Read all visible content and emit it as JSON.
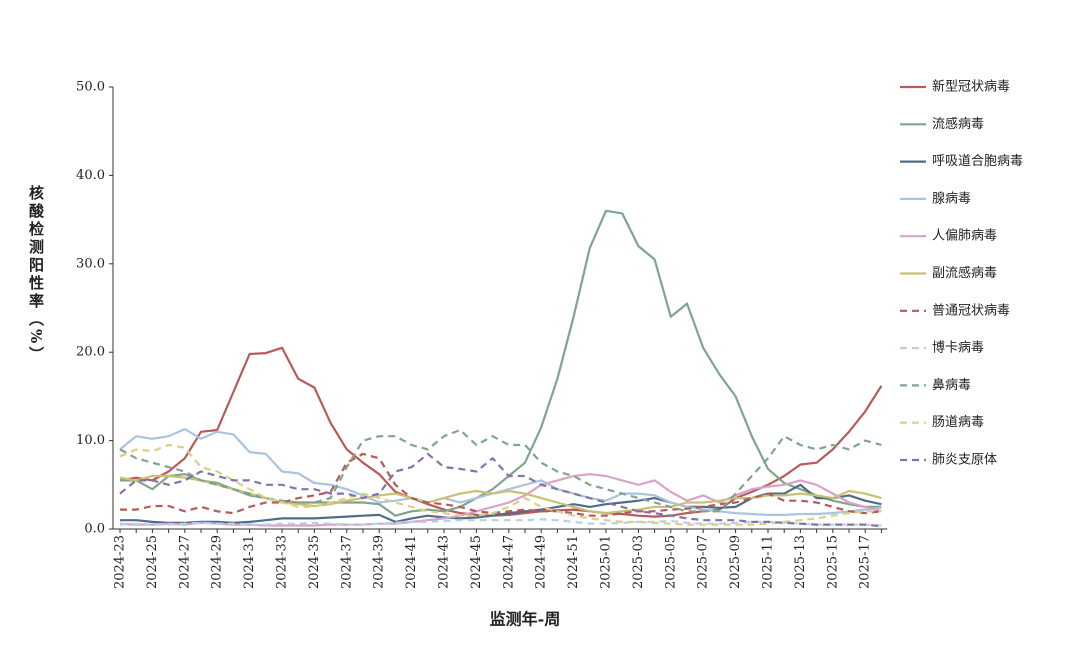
{
  "chart_data": {
    "type": "line",
    "y_label": "核酸检测阳性率（%）",
    "x_label": "监测年-周",
    "categories": [
      "2024-23",
      null,
      "2024-25",
      null,
      "2024-27",
      null,
      "2024-29",
      null,
      "2024-31",
      null,
      "2024-33",
      null,
      "2024-35",
      null,
      "2024-37",
      null,
      "2024-39",
      null,
      "2024-41",
      null,
      "2024-43",
      null,
      "2024-45",
      null,
      "2024-47",
      null,
      "2024-49",
      null,
      "2024-51",
      null,
      "2025-01",
      null,
      "2025-03",
      null,
      "2025-05",
      null,
      "2025-07",
      null,
      "2025-09",
      null,
      "2025-11",
      null,
      "2025-13",
      null,
      "2025-15",
      null,
      "2025-17",
      null
    ],
    "ylim": [
      0,
      50
    ],
    "yticks": [
      {
        "value": 0,
        "label": "0.0"
      },
      {
        "value": 10,
        "label": "10.0"
      },
      {
        "value": 20,
        "label": "20.0"
      },
      {
        "value": 30,
        "label": "30.0"
      },
      {
        "value": 40,
        "label": "40.0"
      },
      {
        "value": 50,
        "label": "50.0"
      }
    ],
    "series": [
      {
        "name": "新型冠状病毒",
        "color": "#b85a57",
        "dashed": false,
        "values": [
          5.5,
          5.8,
          5.5,
          6.5,
          8,
          11,
          11.2,
          15.5,
          19.8,
          19.9,
          20.5,
          17,
          16,
          12,
          9,
          7.5,
          6.2,
          4.2,
          3.5,
          2.8,
          2.2,
          1.8,
          1.6,
          1.5,
          1.6,
          1.8,
          2.0,
          2.1,
          2.2,
          2.0,
          1.8,
          1.7,
          1.5,
          1.4,
          1.5,
          1.8,
          2.0,
          2.2,
          3.5,
          4.2,
          5.0,
          6.0,
          7.3,
          7.5,
          9.0,
          11.0,
          13.3,
          16.2
        ]
      },
      {
        "name": "流感病毒",
        "color": "#7fa58c",
        "dashed": false,
        "values": [
          5.5,
          5.5,
          4.5,
          6,
          6.2,
          5.5,
          5.2,
          4.5,
          3.8,
          3.5,
          3.0,
          3.0,
          3.0,
          3.0,
          3.0,
          3.0,
          2.8,
          1.5,
          2.0,
          2.2,
          2.0,
          2.5,
          3.5,
          4.5,
          6.0,
          7.5,
          11.5,
          17,
          24,
          31.8,
          36,
          35.7,
          32,
          30.5,
          24,
          25.5,
          20.5,
          17.5,
          15,
          10.5,
          6.8,
          5.2,
          4.5,
          3.8,
          3.2,
          2.8,
          2.5,
          2.5
        ]
      },
      {
        "name": "呼吸道合胞病毒",
        "color": "#4f6d8a",
        "dashed": false,
        "values": [
          1.0,
          1.0,
          0.8,
          0.7,
          0.7,
          0.8,
          0.8,
          0.7,
          0.8,
          1.0,
          1.2,
          1.2,
          1.2,
          1.3,
          1.4,
          1.5,
          1.6,
          0.8,
          1.2,
          1.5,
          1.3,
          1.2,
          1.3,
          1.5,
          1.8,
          2.0,
          2.2,
          2.5,
          2.8,
          2.5,
          2.8,
          3.0,
          3.2,
          3.5,
          3.0,
          2.5,
          2.5,
          2.4,
          2.5,
          3.5,
          4.0,
          4.0,
          5.0,
          3.5,
          3.5,
          3.8,
          3.2,
          2.8
        ]
      },
      {
        "name": "腺病毒",
        "color": "#a9c4e0",
        "dashed": false,
        "values": [
          9,
          10.5,
          10.2,
          10.5,
          11.3,
          10.2,
          11,
          10.7,
          8.7,
          8.5,
          6.5,
          6.3,
          5.2,
          5.0,
          4.5,
          3.8,
          3.0,
          3.2,
          3.5,
          3.0,
          3.5,
          3.0,
          3.5,
          4.0,
          4.5,
          5.0,
          5.5,
          4.5,
          4.0,
          3.5,
          3.2,
          4.0,
          4.0,
          3.8,
          3.0,
          2.5,
          2.2,
          2.0,
          1.8,
          1.7,
          1.6,
          1.6,
          1.7,
          1.7,
          1.8,
          2.0,
          2.2,
          2.4
        ]
      },
      {
        "name": "人偏肺病毒",
        "color": "#d9a3c9",
        "dashed": false,
        "values": [
          0.6,
          0.5,
          0.5,
          0.6,
          0.5,
          0.7,
          0.6,
          0.5,
          0.5,
          0.4,
          0.4,
          0.4,
          0.4,
          0.5,
          0.5,
          0.5,
          0.6,
          0.6,
          0.8,
          1.0,
          1.2,
          1.5,
          2.0,
          2.5,
          3.0,
          3.8,
          5.0,
          5.5,
          6.0,
          6.2,
          6.0,
          5.5,
          5.0,
          5.5,
          4.2,
          3.2,
          3.8,
          3.0,
          3.8,
          4.5,
          4.8,
          5.0,
          5.5,
          5.0,
          4.0,
          3.0,
          2.5,
          2.0
        ]
      },
      {
        "name": "副流感病毒",
        "color": "#c9c172",
        "dashed": false,
        "values": [
          5.8,
          5.5,
          6.0,
          6.0,
          5.8,
          5.5,
          5.0,
          4.5,
          4.0,
          3.5,
          3.0,
          2.8,
          2.6,
          2.8,
          3.2,
          3.5,
          3.8,
          4.0,
          3.5,
          3.0,
          3.5,
          4.0,
          4.3,
          4.0,
          4.3,
          4.0,
          3.5,
          3.0,
          2.5,
          2.0,
          1.8,
          2.0,
          2.2,
          2.5,
          2.5,
          3.0,
          3.0,
          3.2,
          3.5,
          3.5,
          3.8,
          3.8,
          4.0,
          3.8,
          3.5,
          4.3,
          4.0,
          3.5
        ]
      },
      {
        "name": "普通冠状病毒",
        "color": "#b85a57",
        "dashed": true,
        "values": [
          2.2,
          2.2,
          2.6,
          2.6,
          2.0,
          2.5,
          2.0,
          1.8,
          2.5,
          3.0,
          3.0,
          3.5,
          3.8,
          4.2,
          7.5,
          8.5,
          8.0,
          5.0,
          3.5,
          3.0,
          2.8,
          2.5,
          2.0,
          1.8,
          2.0,
          2.2,
          2.0,
          2.0,
          1.8,
          1.5,
          1.5,
          1.8,
          2.0,
          2.0,
          2.2,
          2.3,
          2.5,
          2.8,
          3.0,
          3.5,
          4.0,
          3.2,
          3.2,
          3.0,
          2.5,
          2.0,
          1.8,
          2.0
        ]
      },
      {
        "name": "博卡病毒",
        "color": "#b9d0e8",
        "dashed": true,
        "values": [
          0.5,
          0.6,
          0.5,
          0.5,
          0.6,
          0.7,
          0.6,
          0.6,
          0.5,
          0.5,
          0.6,
          0.6,
          0.7,
          0.6,
          0.5,
          0.5,
          0.6,
          0.7,
          0.8,
          0.8,
          0.9,
          1.0,
          1.0,
          1.0,
          1.0,
          1.0,
          1.1,
          1.0,
          0.8,
          0.6,
          0.6,
          0.7,
          0.8,
          0.8,
          0.9,
          0.7,
          0.6,
          0.6,
          0.7,
          0.8,
          0.8,
          0.7,
          0.6,
          0.5,
          0.5,
          0.5,
          0.5,
          0.4
        ]
      },
      {
        "name": "鼻病毒",
        "color": "#7fa58c",
        "dashed": true,
        "values": [
          9,
          8,
          7.5,
          7,
          6.5,
          5.5,
          5.0,
          4.5,
          4.0,
          3.5,
          3.2,
          3.0,
          3.0,
          3.5,
          7.0,
          10.0,
          10.5,
          10.5,
          9.5,
          9.0,
          10.5,
          11.2,
          9.5,
          10.5,
          9.5,
          9.5,
          7.5,
          6.5,
          6.0,
          5.0,
          4.5,
          4.0,
          3.5,
          3.0,
          2.5,
          2.0,
          2.0,
          2.0,
          4.0,
          6.0,
          8.0,
          10.5,
          9.5,
          9.0,
          9.5,
          9.0,
          10.0,
          9.5
        ]
      },
      {
        "name": "肠道病毒",
        "color": "#d9d184",
        "dashed": true,
        "values": [
          8.2,
          9.0,
          8.8,
          9.5,
          9.2,
          7.0,
          6.5,
          5.5,
          4.5,
          3.5,
          3.0,
          2.5,
          2.5,
          3.0,
          3.5,
          4.0,
          3.5,
          3.0,
          2.5,
          2.0,
          1.8,
          1.5,
          1.5,
          1.8,
          2.5,
          3.5,
          2.5,
          2.0,
          1.5,
          1.2,
          1.0,
          0.8,
          0.8,
          0.7,
          0.6,
          0.5,
          0.5,
          0.5,
          0.5,
          0.5,
          0.6,
          0.8,
          1.0,
          1.2,
          1.5,
          1.8,
          2.0,
          2.0
        ]
      },
      {
        "name": "肺炎支原体",
        "color": "#8273aa",
        "dashed": true,
        "values": [
          4.0,
          5.5,
          5.5,
          5.0,
          5.5,
          6.5,
          6.0,
          5.5,
          5.5,
          5.0,
          5.0,
          4.5,
          4.5,
          4.0,
          4.0,
          3.5,
          4.0,
          6.5,
          7.0,
          8.5,
          7.0,
          6.8,
          6.5,
          8.0,
          6.0,
          6.0,
          5.0,
          4.5,
          4.0,
          3.5,
          3.0,
          2.5,
          2.0,
          1.8,
          1.5,
          1.2,
          1.0,
          1.0,
          1.0,
          0.8,
          0.8,
          0.7,
          0.6,
          0.5,
          0.5,
          0.5,
          0.5,
          0.3
        ]
      }
    ]
  }
}
